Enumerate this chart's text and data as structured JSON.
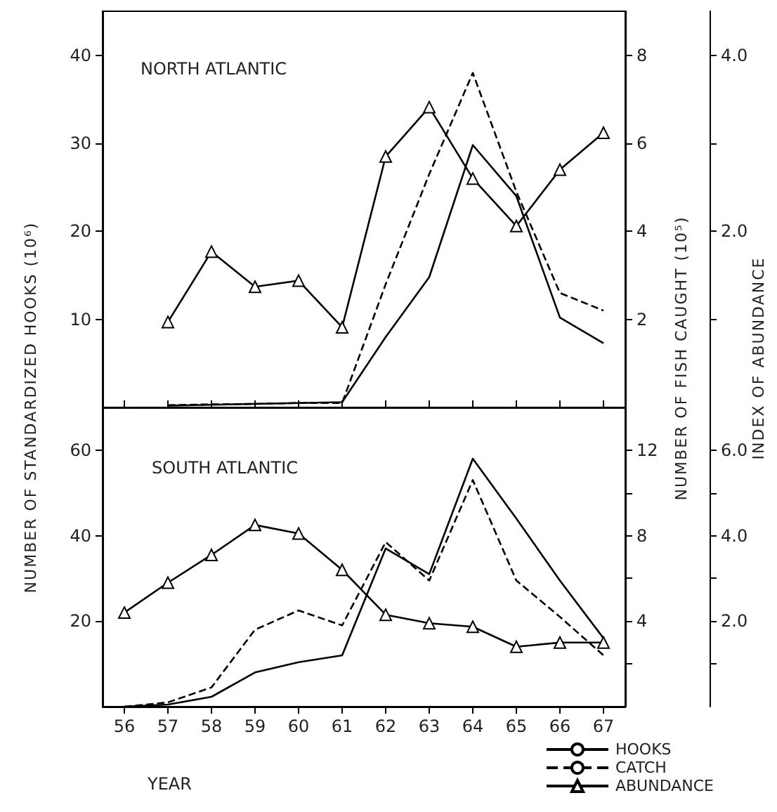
{
  "chart_data": [
    {
      "type": "line",
      "title": "NORTH ATLANTIC",
      "ylabel": "NUMBER OF STANDARDIZED HOOKS (10⁶)",
      "y2label": "NUMBER OF FISH CAUGHT (10⁵)",
      "y3label": "INDEX OF ABUNDANCE",
      "categories": [
        "56",
        "57",
        "58",
        "59",
        "60",
        "61",
        "62",
        "63",
        "64",
        "65",
        "66",
        "67"
      ],
      "ylim": [
        0,
        45
      ],
      "yticks": [
        10,
        20,
        30,
        40
      ],
      "y2lim": [
        0,
        9
      ],
      "y2ticks": [
        2,
        4,
        6,
        8
      ],
      "y3lim": [
        0,
        4.5
      ],
      "y3ticks": [
        {
          "value": 1,
          "label": null
        },
        {
          "value": 2,
          "label": "2.0"
        },
        {
          "value": 3,
          "label": null
        },
        {
          "value": 4,
          "label": "4.0"
        }
      ],
      "tick_labels": "y",
      "grid": false,
      "legend": false,
      "series": [
        {
          "color": "#000000",
          "line_style": "solid",
          "marker": "none",
          "values": [
            null,
            0.2,
            0.3,
            0.4,
            0.5,
            0.6,
            8,
            14.8,
            29.8,
            24,
            10.2,
            7.3
          ]
        },
        {
          "color": "#000000",
          "line_style": "dashed",
          "marker": "none",
          "axis": "y2",
          "values": [
            null,
            0.05,
            0.07,
            0.08,
            0.1,
            0.1,
            2.8,
            5.3,
            7.6,
            4.9,
            2.6,
            2.2
          ]
        },
        {
          "color": "#000000",
          "line_style": "solid",
          "marker": "triangle",
          "axis": "y3",
          "values": [
            null,
            0.97,
            1.77,
            1.37,
            1.44,
            0.91,
            2.85,
            3.41,
            2.6,
            2.06,
            2.7,
            3.12
          ]
        }
      ]
    },
    {
      "type": "line",
      "title": "SOUTH ATLANTIC",
      "xlabel": "YEAR",
      "categories": [
        "56",
        "57",
        "58",
        "59",
        "60",
        "61",
        "62",
        "63",
        "64",
        "65",
        "66",
        "67"
      ],
      "ylim": [
        0,
        70
      ],
      "yticks": [
        20,
        40,
        60
      ],
      "y2lim": [
        0,
        14
      ],
      "y2ticks": [
        {
          "value": 2,
          "label": null
        },
        4,
        {
          "value": 6,
          "label": null
        },
        8,
        {
          "value": 10,
          "label": null
        },
        12
      ],
      "y3lim": [
        0,
        7
      ],
      "y3ticks": [
        {
          "value": 1,
          "label": null
        },
        {
          "value": 2,
          "label": "2.0"
        },
        {
          "value": 3,
          "label": null
        },
        {
          "value": 4,
          "label": "4.0"
        },
        {
          "value": 5,
          "label": null
        },
        {
          "value": 6,
          "label": "6.0"
        }
      ],
      "grid": false,
      "legend": "bottom right",
      "series": [
        {
          "name": "HOOKS",
          "color": "#000000",
          "line_style": "solid",
          "marker": "none",
          "values": [
            0,
            0.5,
            2.3,
            8,
            10.4,
            12,
            37,
            31,
            58,
            44,
            29.5,
            16
          ]
        },
        {
          "name": "CATCH",
          "color": "#000000",
          "line_style": "dashed",
          "marker": "none",
          "axis": "y2",
          "values": [
            0,
            0.2,
            0.9,
            3.6,
            4.5,
            3.8,
            7.7,
            5.9,
            10.6,
            5.9,
            4.2,
            2.4
          ]
        },
        {
          "name": "ABUNDANCE",
          "color": "#000000",
          "line_style": "solid",
          "marker": "triangle",
          "axis": "y3",
          "values": [
            2.2,
            2.9,
            3.55,
            4.25,
            4.05,
            3.2,
            2.15,
            1.95,
            1.87,
            1.4,
            1.5,
            1.5
          ]
        }
      ]
    }
  ]
}
